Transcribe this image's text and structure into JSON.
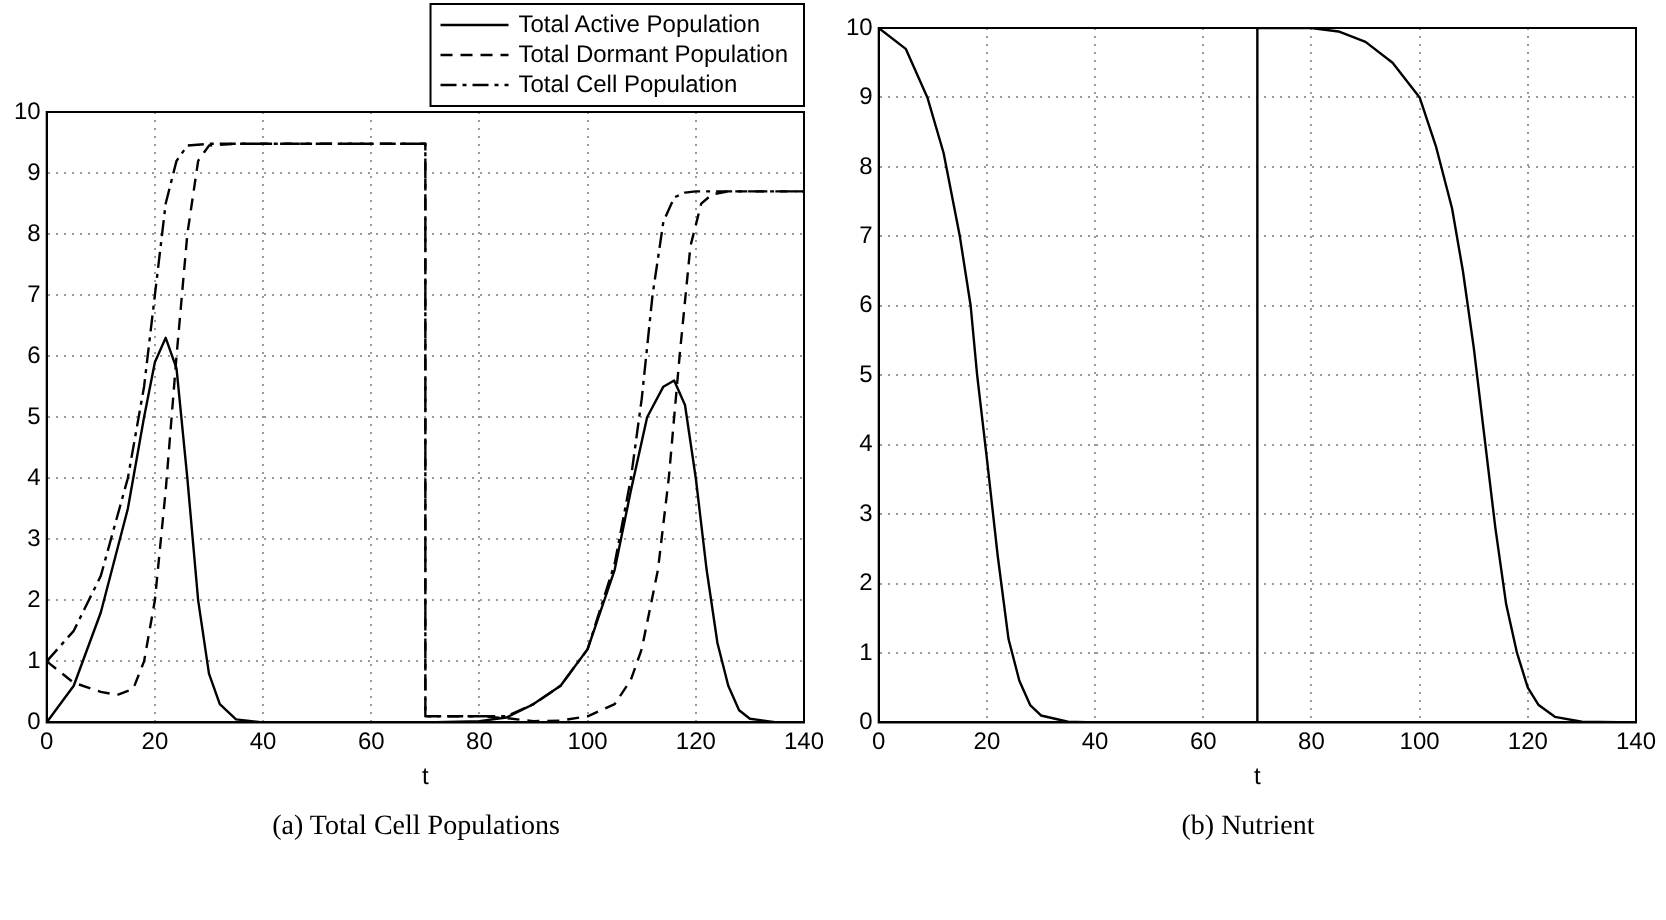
{
  "chart_data": [
    {
      "type": "line",
      "xlabel": "t",
      "xlim": [
        0,
        140
      ],
      "xticks": [
        0,
        20,
        40,
        60,
        80,
        100,
        120,
        140
      ],
      "ylim": [
        0,
        10
      ],
      "yticks": [
        0,
        1,
        2,
        3,
        4,
        5,
        6,
        7,
        8,
        9,
        10
      ],
      "grid": true,
      "legend": "top right",
      "annotations": [
        "(a) Total Cell Populations"
      ],
      "series": [
        {
          "name": "Total Active Population",
          "color": "#000000",
          "line_style": "solid",
          "x": [
            0,
            5,
            10,
            15,
            18,
            20,
            22,
            24,
            26,
            28,
            30,
            32,
            35,
            40,
            70,
            80,
            85,
            90,
            95,
            100,
            105,
            108,
            111,
            114,
            116,
            118,
            120,
            122,
            124,
            126,
            128,
            130,
            135,
            140
          ],
          "values": [
            0,
            0.6,
            1.8,
            3.5,
            5,
            5.9,
            6.3,
            5.8,
            4,
            2,
            0.8,
            0.3,
            0.05,
            0,
            0,
            0.02,
            0.08,
            0.3,
            0.6,
            1.2,
            2.5,
            3.8,
            5,
            5.5,
            5.6,
            5.2,
            4,
            2.5,
            1.3,
            0.6,
            0.2,
            0.06,
            0,
            0
          ]
        },
        {
          "name": "Total Dormant Population",
          "color": "#000000",
          "line_style": "dashed",
          "x": [
            0,
            5,
            10,
            13,
            16,
            18,
            20,
            22,
            24,
            26,
            28,
            30,
            35,
            70,
            70,
            80,
            85,
            90,
            95,
            100,
            105,
            108,
            110,
            113,
            115,
            117,
            119,
            121,
            123,
            126,
            140
          ],
          "values": [
            1,
            0.65,
            0.5,
            0.45,
            0.55,
            1,
            2,
            3.8,
            6,
            8,
            9.2,
            9.45,
            9.48,
            9.48,
            0.1,
            0.1,
            0.07,
            0.02,
            0.03,
            0.1,
            0.3,
            0.7,
            1.2,
            2.5,
            4,
            6,
            7.8,
            8.5,
            8.65,
            8.7,
            8.7
          ]
        },
        {
          "name": "Total Cell Population",
          "color": "#000000",
          "line_style": "dashdot",
          "x": [
            0,
            5,
            10,
            15,
            18,
            20,
            22,
            24,
            26,
            30,
            70,
            70,
            80,
            85,
            90,
            95,
            100,
            105,
            108,
            110,
            112,
            114,
            116,
            118,
            120,
            140
          ],
          "values": [
            1,
            1.5,
            2.4,
            4,
            5.5,
            7,
            8.5,
            9.2,
            9.45,
            9.48,
            9.48,
            0.1,
            0.1,
            0.1,
            0.3,
            0.6,
            1.2,
            2.6,
            4,
            5.3,
            7,
            8.2,
            8.6,
            8.68,
            8.7,
            8.7
          ]
        }
      ]
    },
    {
      "type": "line",
      "xlabel": "t",
      "xlim": [
        0,
        140
      ],
      "xticks": [
        0,
        20,
        40,
        60,
        80,
        100,
        120,
        140
      ],
      "ylim": [
        0,
        10
      ],
      "yticks": [
        0,
        1,
        2,
        3,
        4,
        5,
        6,
        7,
        8,
        9,
        10
      ],
      "grid": true,
      "annotations": [
        "(b) Nutrient"
      ],
      "series": [
        {
          "color": "#000000",
          "line_style": "solid",
          "x": [
            0,
            5,
            9,
            12,
            15,
            17,
            18.2,
            20,
            22,
            24,
            26,
            28,
            30,
            35,
            40,
            70,
            70,
            80,
            85,
            90,
            95,
            100,
            103,
            106,
            108,
            110,
            112,
            114,
            116,
            118,
            120,
            122,
            125,
            130,
            140
          ],
          "values": [
            10,
            9.7,
            9,
            8.2,
            7,
            6,
            5,
            3.8,
            2.4,
            1.2,
            0.6,
            0.25,
            0.1,
            0.01,
            0,
            0,
            10,
            10,
            9.95,
            9.8,
            9.5,
            9,
            8.3,
            7.4,
            6.5,
            5.4,
            4.1,
            2.8,
            1.7,
            1,
            0.5,
            0.25,
            0.08,
            0.01,
            0
          ]
        }
      ]
    }
  ]
}
